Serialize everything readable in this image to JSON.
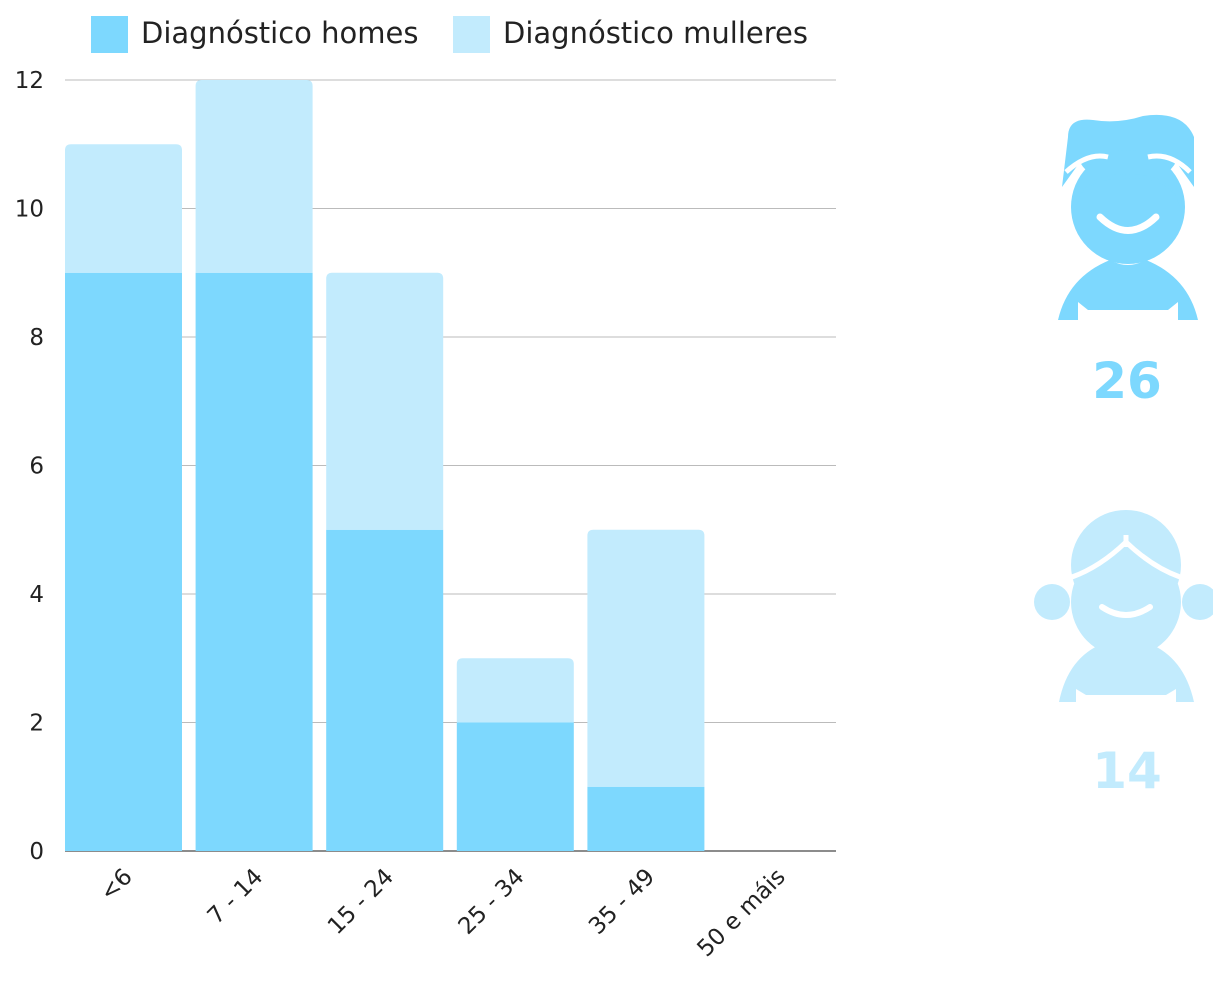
{
  "chart_data": {
    "type": "bar",
    "stacked": true,
    "categories": [
      "<6",
      "7 - 14",
      "15 - 24",
      "25 - 34",
      "35 - 49",
      "50 e máis"
    ],
    "series": [
      {
        "name": "Diagnóstico homes",
        "values": [
          9,
          9,
          5,
          2,
          1,
          0
        ],
        "color": "#7dd8fe"
      },
      {
        "name": "Diagnóstico mulleres",
        "values": [
          2,
          3,
          4,
          1,
          4,
          0
        ],
        "color": "#c2ebfd"
      }
    ],
    "yticks": [
      0,
      2,
      4,
      6,
      8,
      10,
      12
    ],
    "ylim": [
      0,
      12
    ],
    "grid": true,
    "legend": "top"
  },
  "stats": {
    "men": {
      "icon": "boy-icon",
      "value": "26",
      "color": "#7dd8fe"
    },
    "women": {
      "icon": "girl-icon",
      "value": "14",
      "color": "#c2ebfd"
    }
  }
}
